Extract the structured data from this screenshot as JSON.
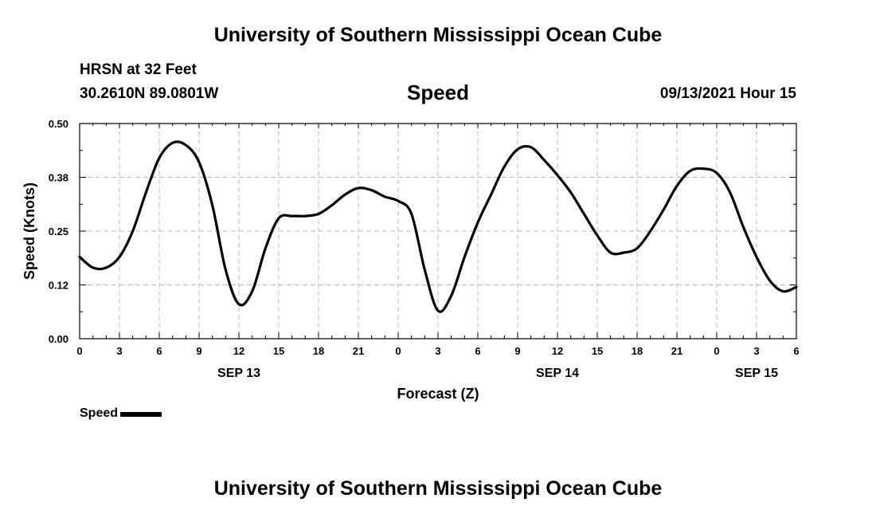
{
  "header": {
    "title": "University of Southern Mississippi Ocean Cube",
    "station": "HRSN at 32 Feet",
    "coordinates": "30.2610N  89.0801W",
    "parameter": "Speed",
    "datetime": "09/13/2021 Hour 15"
  },
  "footer": {
    "title": "University of Southern Mississippi Ocean Cube"
  },
  "legend": {
    "label": "Speed",
    "color": "#000000"
  },
  "chart_data": {
    "type": "line",
    "title": "Speed",
    "xlabel": "Forecast (Z)",
    "ylabel": "Speed (Knots)",
    "ylim": [
      0,
      0.5
    ],
    "xlim": [
      0,
      54
    ],
    "grid": true,
    "legend_position": "bottom-left",
    "y_ticks": [
      "0.00",
      "0.12",
      "0.25",
      "0.38",
      "0.50"
    ],
    "x_tick_labels": [
      "0",
      "3",
      "6",
      "9",
      "12",
      "15",
      "18",
      "21",
      "0",
      "3",
      "6",
      "9",
      "12",
      "15",
      "18",
      "21",
      "0",
      "3",
      "6"
    ],
    "date_labels": [
      {
        "label": "SEP 13",
        "hour": 12
      },
      {
        "label": "SEP 14",
        "hour": 36
      },
      {
        "label": "SEP 15",
        "hour": 51
      }
    ],
    "series": [
      {
        "name": "Speed",
        "color": "#000000",
        "x": [
          0,
          1,
          2,
          3,
          4,
          5,
          6,
          7,
          8,
          9,
          10,
          11,
          12,
          13,
          14,
          15,
          16,
          17,
          18,
          19,
          20,
          21,
          22,
          23,
          24,
          25,
          26,
          27,
          28,
          29,
          30,
          31,
          32,
          33,
          34,
          35,
          36,
          37,
          38,
          39,
          40,
          41,
          42,
          43,
          44,
          45,
          46,
          47,
          48,
          49,
          50,
          51,
          52,
          53,
          54
        ],
        "values": [
          0.19,
          0.165,
          0.165,
          0.19,
          0.25,
          0.34,
          0.42,
          0.455,
          0.45,
          0.41,
          0.31,
          0.16,
          0.08,
          0.11,
          0.21,
          0.28,
          0.285,
          0.285,
          0.29,
          0.31,
          0.335,
          0.35,
          0.345,
          0.33,
          0.32,
          0.29,
          0.16,
          0.065,
          0.1,
          0.19,
          0.27,
          0.335,
          0.4,
          0.44,
          0.445,
          0.415,
          0.38,
          0.34,
          0.29,
          0.24,
          0.2,
          0.2,
          0.21,
          0.25,
          0.3,
          0.355,
          0.39,
          0.395,
          0.385,
          0.34,
          0.26,
          0.19,
          0.135,
          0.11,
          0.12
        ]
      }
    ]
  }
}
